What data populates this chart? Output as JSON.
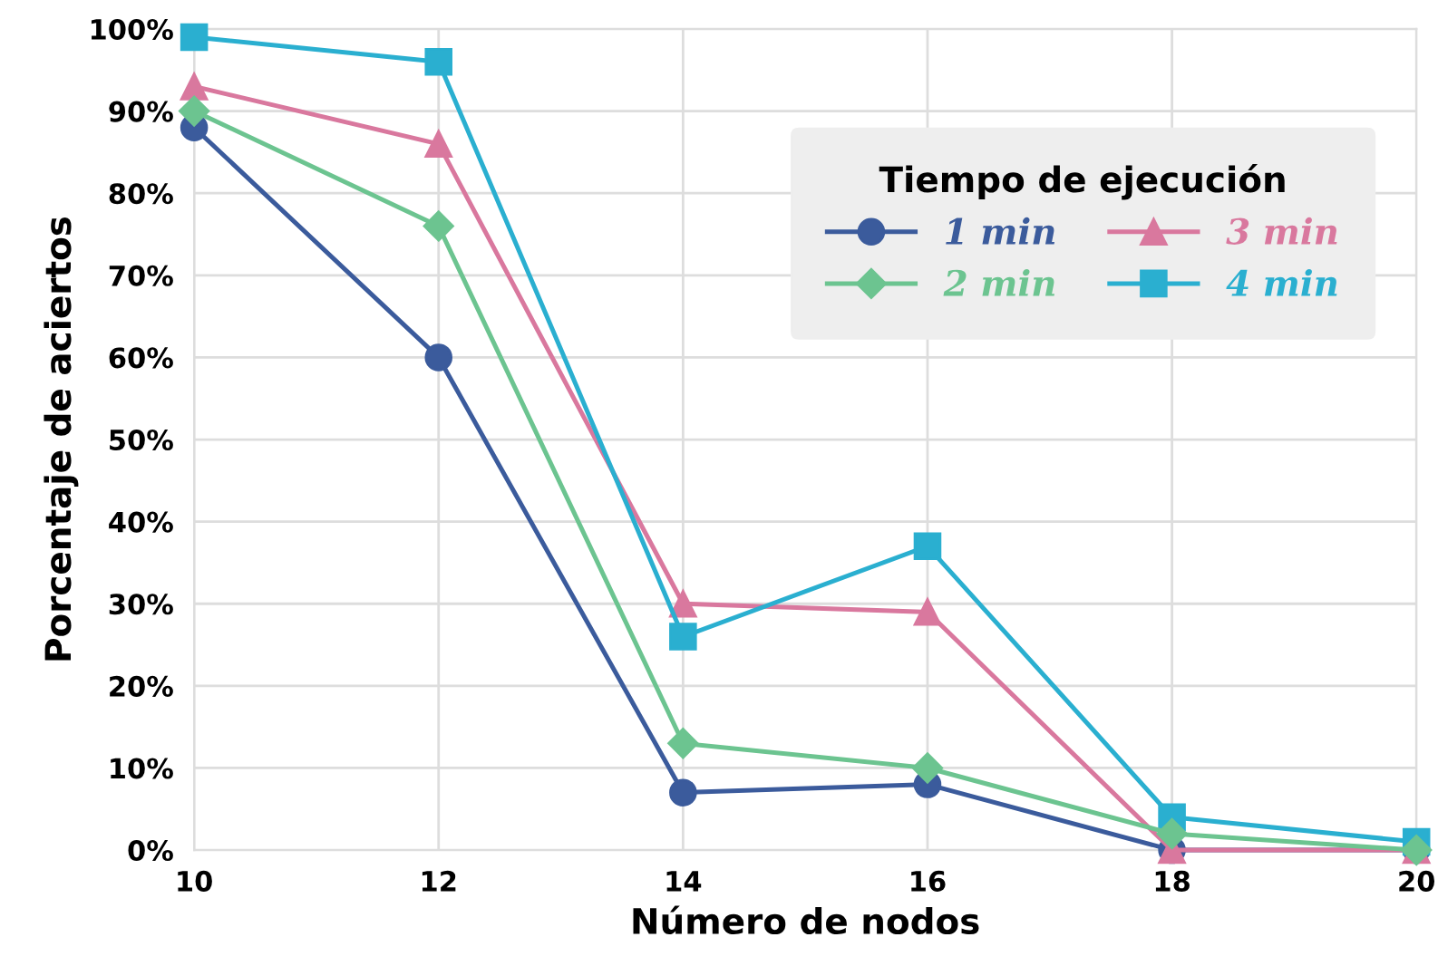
{
  "chart_data": {
    "type": "line",
    "xlabel": "Número de nodos",
    "ylabel": "Porcentaje de aciertos",
    "legend_title": "Tiempo de ejecución",
    "x": [
      10,
      12,
      14,
      16,
      18,
      20
    ],
    "series": [
      {
        "name": "1 min",
        "color": "#3b5b9c",
        "marker": "circle",
        "values": [
          88,
          60,
          7,
          8,
          0,
          0
        ]
      },
      {
        "name": "2 min",
        "color": "#6cc490",
        "marker": "diamond",
        "values": [
          90,
          76,
          13,
          10,
          2,
          0
        ]
      },
      {
        "name": "3 min",
        "color": "#d9789e",
        "marker": "triangle",
        "values": [
          93,
          86,
          30,
          29,
          0,
          0
        ]
      },
      {
        "name": "4 min",
        "color": "#2aafd0",
        "marker": "square",
        "values": [
          99,
          96,
          26,
          37,
          4,
          1
        ]
      }
    ],
    "xlim": [
      10,
      20
    ],
    "xticks": [
      10,
      12,
      14,
      16,
      18,
      20
    ],
    "ylim": [
      0,
      100
    ],
    "yticks": [
      {
        "value": 0,
        "label": "0%"
      },
      {
        "value": 10,
        "label": "10%"
      },
      {
        "value": 20,
        "label": "20%"
      },
      {
        "value": 30,
        "label": "30%"
      },
      {
        "value": 40,
        "label": "40%"
      },
      {
        "value": 50,
        "label": "50%"
      },
      {
        "value": 60,
        "label": "60%"
      },
      {
        "value": 70,
        "label": "70%"
      },
      {
        "value": 80,
        "label": "80%"
      },
      {
        "value": 90,
        "label": "90%"
      },
      {
        "value": 100,
        "label": "100%"
      }
    ],
    "grid": true,
    "legend": "top right",
    "line_style": "solid"
  }
}
